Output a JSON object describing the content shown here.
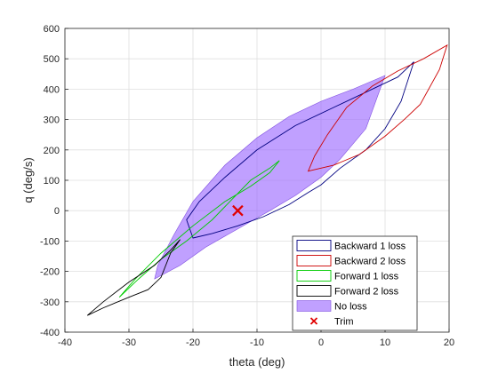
{
  "chart_data": {
    "type": "line",
    "title": "",
    "xlabel": "theta (deg)",
    "ylabel": "q (deg/s)",
    "xlim": [
      -40,
      20
    ],
    "ylim": [
      -400,
      600
    ],
    "xticks": [
      -40,
      -30,
      -20,
      -10,
      0,
      10,
      20
    ],
    "yticks": [
      -400,
      -300,
      -200,
      -100,
      0,
      100,
      200,
      300,
      400,
      500,
      600
    ],
    "grid": true,
    "legend_position": "bottom-right",
    "series": [
      {
        "name": "Backward 1 loss",
        "kind": "outline",
        "color": "#000080",
        "points": [
          [
            -20,
            -90
          ],
          [
            -17,
            -75
          ],
          [
            -13,
            -50
          ],
          [
            -9,
            -20
          ],
          [
            -5,
            20
          ],
          [
            -2,
            60
          ],
          [
            0,
            85
          ],
          [
            3,
            140
          ],
          [
            7,
            200
          ],
          [
            10,
            270
          ],
          [
            12.5,
            360
          ],
          [
            14.5,
            490
          ],
          [
            12,
            440
          ],
          [
            7,
            390
          ],
          [
            2,
            340
          ],
          [
            -4,
            280
          ],
          [
            -10,
            200
          ],
          [
            -15,
            110
          ],
          [
            -19,
            30
          ],
          [
            -21,
            -30
          ],
          [
            -20,
            -90
          ]
        ]
      },
      {
        "name": "Backward 2 loss",
        "kind": "outline",
        "color": "#cc0000",
        "points": [
          [
            -2,
            130
          ],
          [
            2,
            150
          ],
          [
            6,
            185
          ],
          [
            10,
            245
          ],
          [
            13,
            300
          ],
          [
            15.5,
            350
          ],
          [
            18.5,
            465
          ],
          [
            19.7,
            545
          ],
          [
            16,
            500
          ],
          [
            12,
            460
          ],
          [
            8,
            410
          ],
          [
            4,
            340
          ],
          [
            1,
            250
          ],
          [
            -1,
            180
          ],
          [
            -2,
            130
          ]
        ]
      },
      {
        "name": "Forward 1 loss",
        "kind": "outline",
        "color": "#00cc00",
        "points": [
          [
            -31.5,
            -285
          ],
          [
            -29,
            -225
          ],
          [
            -25,
            -140
          ],
          [
            -20,
            -50
          ],
          [
            -15,
            30
          ],
          [
            -11,
            80
          ],
          [
            -8,
            125
          ],
          [
            -6.5,
            165
          ],
          [
            -8,
            140
          ],
          [
            -11,
            100
          ],
          [
            -14,
            35
          ],
          [
            -17,
            -30
          ],
          [
            -21,
            -100
          ],
          [
            -25,
            -160
          ],
          [
            -28.5,
            -225
          ],
          [
            -31.5,
            -285
          ]
        ]
      },
      {
        "name": "Forward 2 loss",
        "kind": "outline",
        "color": "#000000",
        "points": [
          [
            -36.5,
            -345
          ],
          [
            -34,
            -300
          ],
          [
            -30,
            -235
          ],
          [
            -26,
            -180
          ],
          [
            -23.5,
            -130
          ],
          [
            -22,
            -95
          ],
          [
            -23.5,
            -140
          ],
          [
            -25,
            -220
          ],
          [
            -27,
            -260
          ],
          [
            -30,
            -285
          ],
          [
            -34,
            -320
          ],
          [
            -36.5,
            -345
          ]
        ]
      },
      {
        "name": "No loss",
        "kind": "filled",
        "color": "#9966ff",
        "points": [
          [
            -26,
            -225
          ],
          [
            -22,
            -180
          ],
          [
            -18,
            -120
          ],
          [
            -13,
            -60
          ],
          [
            -8,
            0
          ],
          [
            -4,
            50
          ],
          [
            0,
            110
          ],
          [
            3,
            170
          ],
          [
            7,
            270
          ],
          [
            10,
            445
          ],
          [
            5,
            400
          ],
          [
            0,
            360
          ],
          [
            -5,
            310
          ],
          [
            -10,
            240
          ],
          [
            -15,
            150
          ],
          [
            -20,
            30
          ],
          [
            -23,
            -80
          ],
          [
            -25.5,
            -180
          ],
          [
            -26,
            -225
          ]
        ]
      },
      {
        "name": "Trim",
        "kind": "marker",
        "color": "#e00000",
        "points": [
          [
            -13,
            0
          ]
        ]
      }
    ]
  }
}
